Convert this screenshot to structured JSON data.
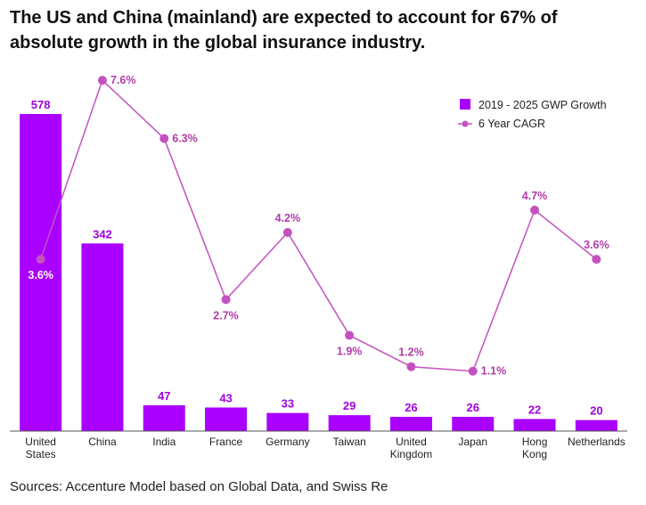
{
  "title": "The US and China (mainland) are expected to account for 67% of absolute growth in the global insurance industry.",
  "source": "Sources: Accenture Model based on Global Data, and Swiss Re",
  "colors": {
    "bar": "#aa00ff",
    "line": "#c452be",
    "line_label": "#b03ca8",
    "bar_label": "#a000e0"
  },
  "chart_data": {
    "type": "bar",
    "title": "The US and China (mainland) are expected to account for 67% of absolute growth in the global insurance industry.",
    "categories": [
      [
        "United",
        "States"
      ],
      [
        "China"
      ],
      [
        "India"
      ],
      [
        "France"
      ],
      [
        "Germany"
      ],
      [
        "Taiwan"
      ],
      [
        "United",
        "Kingdom"
      ],
      [
        "Japan"
      ],
      [
        "Hong",
        "Kong"
      ],
      [
        "Netherlands"
      ]
    ],
    "series": [
      {
        "name": "2019 - 2025 GWP Growth",
        "kind": "bar",
        "values": [
          578,
          342,
          47,
          43,
          33,
          29,
          26,
          26,
          22,
          20
        ],
        "labels": [
          "578",
          "342",
          "47",
          "43",
          "33",
          "29",
          "26",
          "26",
          "22",
          "20"
        ],
        "ylim": [
          0,
          578
        ]
      },
      {
        "name": "6 Year CAGR",
        "kind": "line",
        "values": [
          3.6,
          7.6,
          6.3,
          2.7,
          4.2,
          1.9,
          1.2,
          1.1,
          4.7,
          3.6
        ],
        "labels": [
          "3.6%",
          "7.6%",
          "6.3%",
          "2.7%",
          "4.2%",
          "1.9%",
          "1.2%",
          "1.1%",
          "4.7%",
          "3.6%"
        ],
        "label_position": [
          "below",
          "right",
          "right",
          "below",
          "above",
          "below",
          "above",
          "right",
          "above",
          "above"
        ],
        "ylim": [
          0,
          8.2
        ]
      }
    ],
    "legend": {
      "position": "top-right"
    },
    "grid": false
  }
}
